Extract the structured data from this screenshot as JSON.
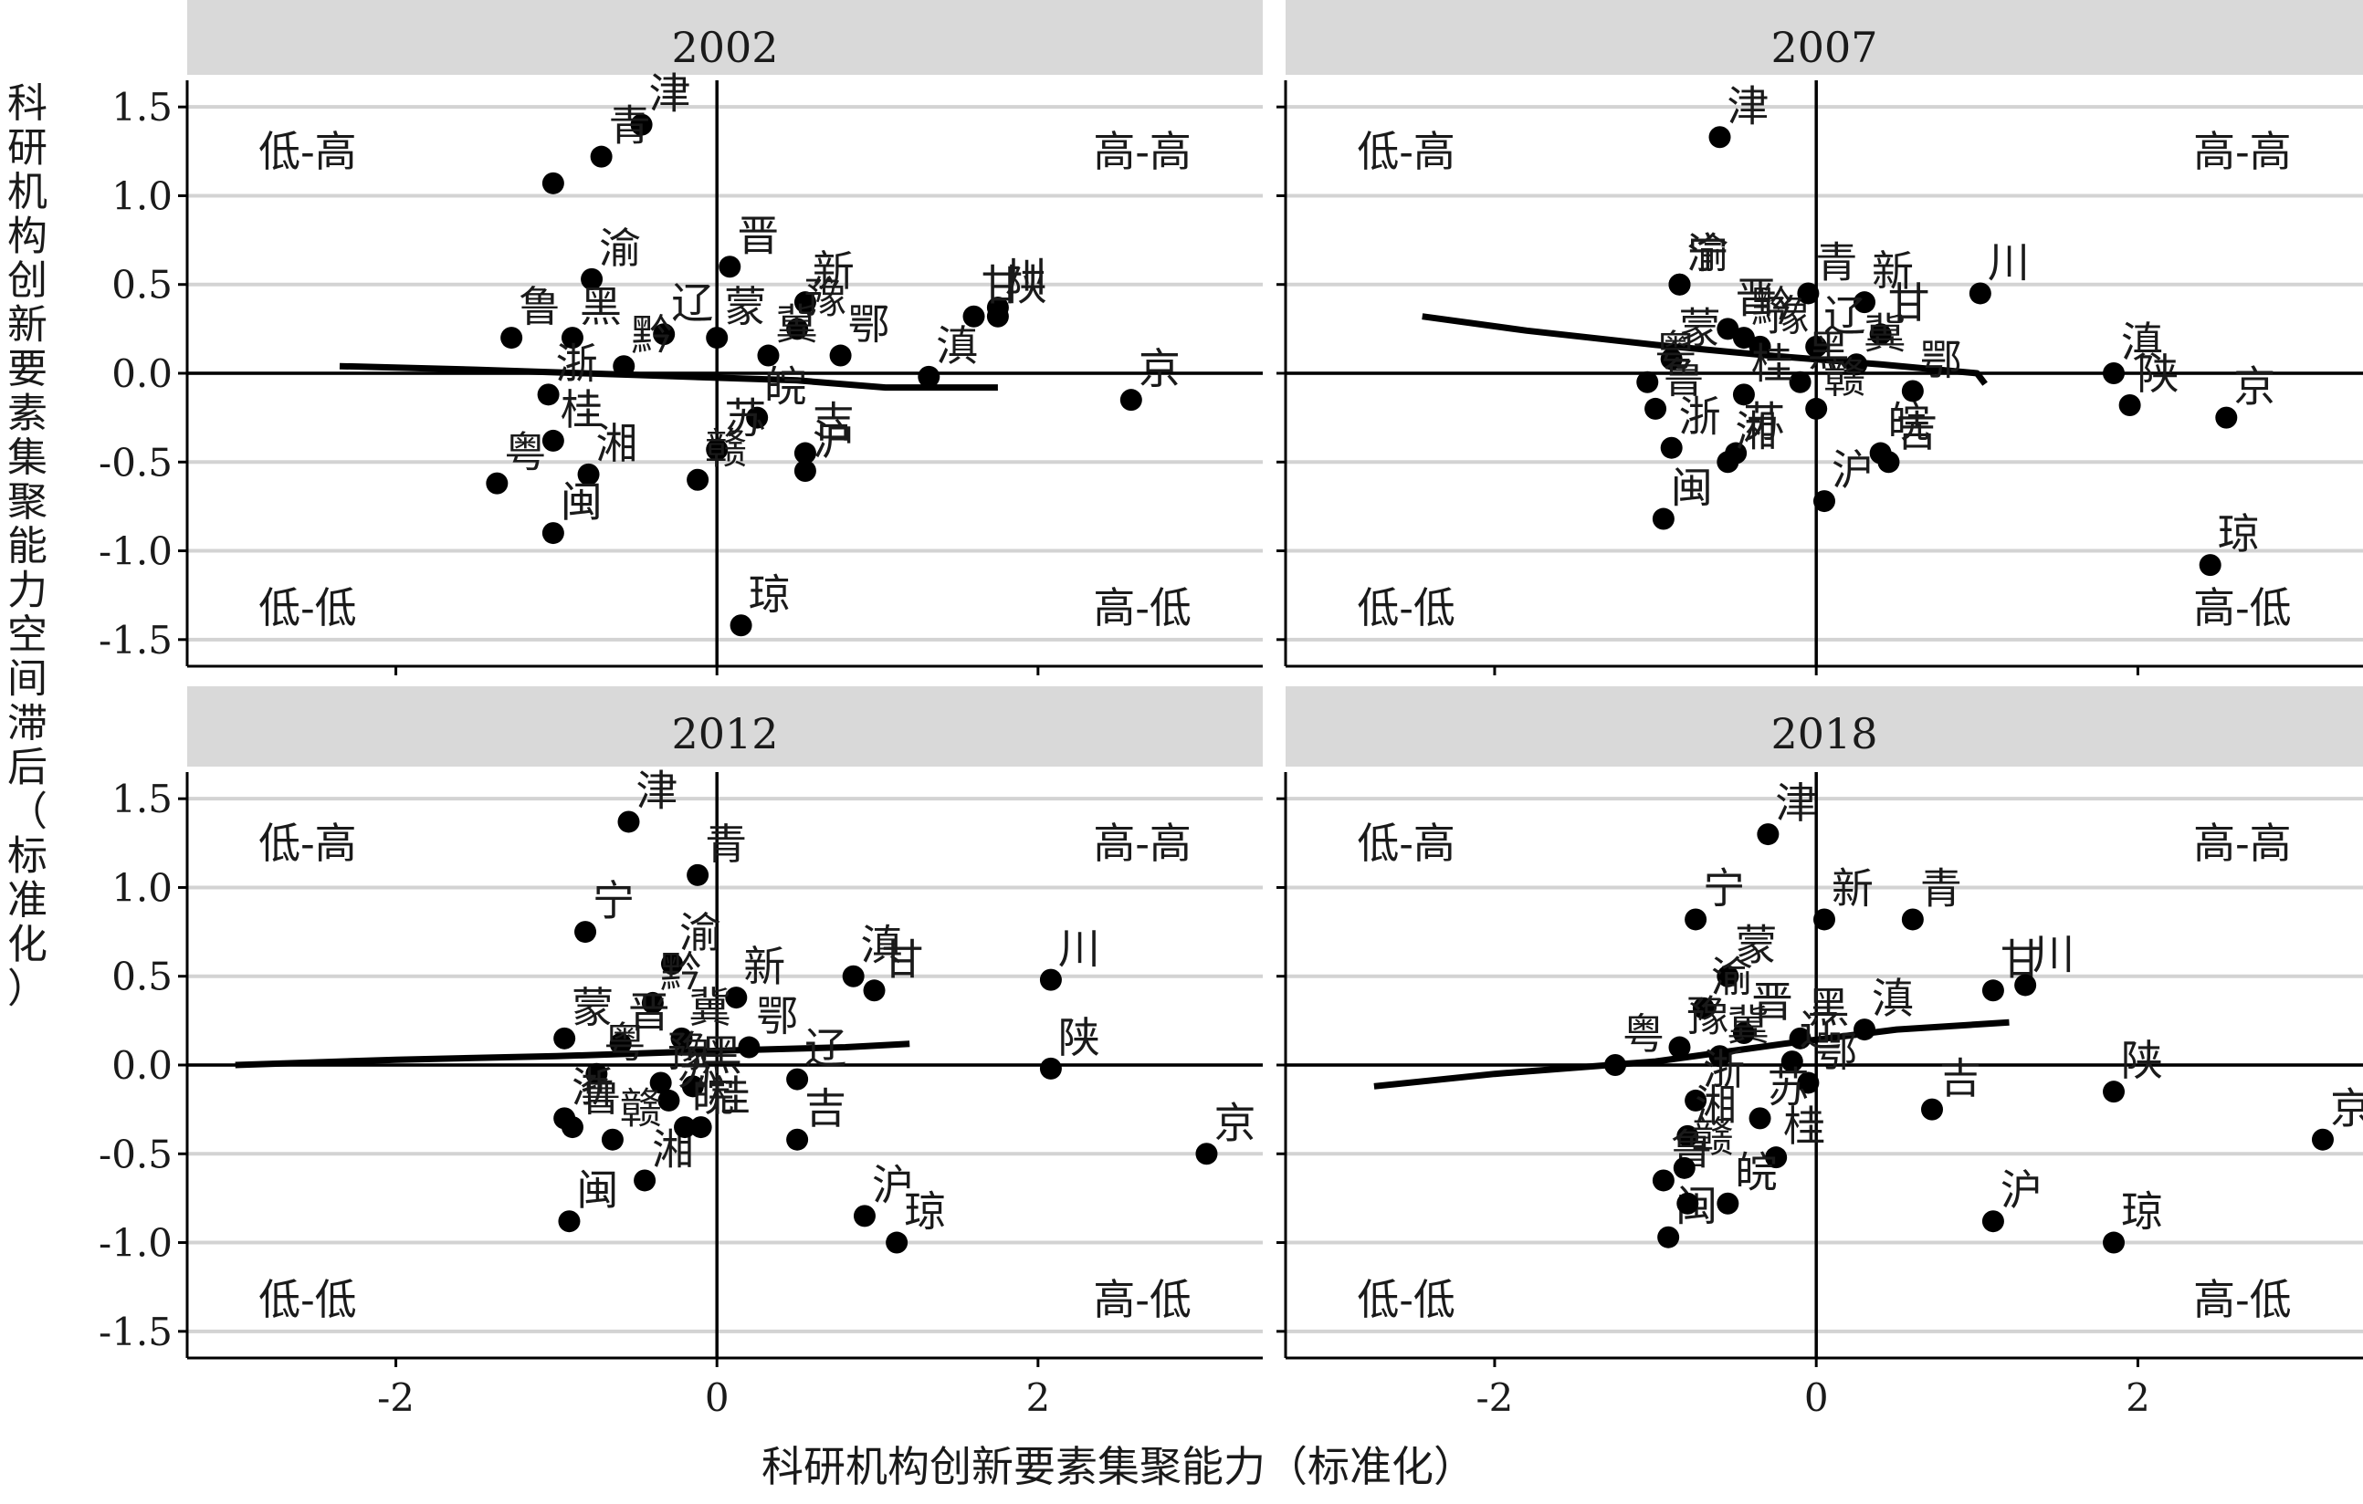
{
  "chart_data": {
    "type": "scatter",
    "xlabel": "科研机构创新要素集聚能力（标准化）",
    "ylabel": "科研机构创新要素集聚能力空间滞后（标准化）",
    "grid": true,
    "quadrant_labels": {
      "top_left": "低-高",
      "top_right": "高-高",
      "bottom_left": "低-低",
      "bottom_right": "高-低"
    },
    "xlim": [
      -3.3,
      3.4
    ],
    "ylim": [
      -1.65,
      1.65
    ],
    "xticks": [
      -2,
      0,
      2
    ],
    "xtick_labels": [
      "-2",
      "0",
      "2"
    ],
    "yticks": [
      1.5,
      1.0,
      0.5,
      0.0,
      -0.5,
      -1.0,
      -1.5
    ],
    "ytick_labels": [
      "1.5",
      "1.0",
      "0.5",
      "0.0",
      "-0.5",
      "-1.0",
      "-1.5"
    ],
    "panels": [
      {
        "title": "2002",
        "points": [
          {
            "label": "津",
            "x": -0.47,
            "y": 1.4
          },
          {
            "label": "青",
            "x": -0.72,
            "y": 1.22
          },
          {
            "label": "",
            "x": -1.02,
            "y": 1.07
          },
          {
            "label": "晋",
            "x": 0.08,
            "y": 0.6
          },
          {
            "label": "渝",
            "x": -0.78,
            "y": 0.53
          },
          {
            "label": "新",
            "x": 0.55,
            "y": 0.4
          },
          {
            "label": "川",
            "x": 1.75,
            "y": 0.37
          },
          {
            "label": "甘",
            "x": 1.6,
            "y": 0.32
          },
          {
            "label": "陕",
            "x": 1.75,
            "y": 0.32
          },
          {
            "label": "豫",
            "x": 0.5,
            "y": 0.25
          },
          {
            "label": "蒙",
            "x": 0.0,
            "y": 0.2
          },
          {
            "label": "鲁",
            "x": -1.28,
            "y": 0.2
          },
          {
            "label": "黑",
            "x": -0.9,
            "y": 0.2
          },
          {
            "label": "辽",
            "x": -0.33,
            "y": 0.22
          },
          {
            "label": "冀",
            "x": 0.32,
            "y": 0.1
          },
          {
            "label": "鄂",
            "x": 0.77,
            "y": 0.1
          },
          {
            "label": "黔",
            "x": -0.58,
            "y": 0.04
          },
          {
            "label": "浙",
            "x": -1.05,
            "y": -0.12
          },
          {
            "label": "滇",
            "x": 1.32,
            "y": -0.02
          },
          {
            "label": "京",
            "x": 2.58,
            "y": -0.15
          },
          {
            "label": "皖",
            "x": 0.25,
            "y": -0.25
          },
          {
            "label": "桂",
            "x": -1.02,
            "y": -0.38
          },
          {
            "label": "苏",
            "x": 0.0,
            "y": -0.43
          },
          {
            "label": "吉",
            "x": 0.55,
            "y": -0.45
          },
          {
            "label": "沪",
            "x": 0.55,
            "y": -0.55
          },
          {
            "label": "粤",
            "x": -1.37,
            "y": -0.62
          },
          {
            "label": "湘",
            "x": -0.8,
            "y": -0.57
          },
          {
            "label": "赣",
            "x": -0.12,
            "y": -0.6
          },
          {
            "label": "闽",
            "x": -1.02,
            "y": -0.9
          },
          {
            "label": "琼",
            "x": 0.15,
            "y": -1.42
          }
        ],
        "smooth": {
          "x": [
            -2.35,
            -1.5,
            -0.5,
            0.5,
            1.05,
            1.75
          ],
          "y": [
            0.04,
            0.02,
            -0.01,
            -0.04,
            -0.08,
            -0.08
          ]
        }
      },
      {
        "title": "2007",
        "points": [
          {
            "label": "津",
            "x": -0.6,
            "y": 1.33
          },
          {
            "label": "宁",
            "x": -0.85,
            "y": 0.5
          },
          {
            "label": "渝",
            "x": -0.85,
            "y": 0.5
          },
          {
            "label": "青",
            "x": -0.05,
            "y": 0.45
          },
          {
            "label": "新",
            "x": 0.3,
            "y": 0.4
          },
          {
            "label": "川",
            "x": 1.02,
            "y": 0.45
          },
          {
            "label": "晋",
            "x": -0.55,
            "y": 0.25
          },
          {
            "label": "黔",
            "x": -0.45,
            "y": 0.2
          },
          {
            "label": "豫",
            "x": -0.35,
            "y": 0.15
          },
          {
            "label": "辽",
            "x": 0.0,
            "y": 0.15
          },
          {
            "label": "甘",
            "x": 0.4,
            "y": 0.22
          },
          {
            "label": "蒙",
            "x": -0.9,
            "y": 0.08
          },
          {
            "label": "滇",
            "x": 1.85,
            "y": 0.0
          },
          {
            "label": "冀",
            "x": 0.25,
            "y": 0.05
          },
          {
            "label": "鄂",
            "x": 0.6,
            "y": -0.1
          },
          {
            "label": "黑",
            "x": -0.1,
            "y": -0.05
          },
          {
            "label": "粤",
            "x": -1.05,
            "y": -0.05
          },
          {
            "label": "鲁",
            "x": -1.0,
            "y": -0.2
          },
          {
            "label": "桂",
            "x": -0.45,
            "y": -0.12
          },
          {
            "label": "陕",
            "x": 1.95,
            "y": -0.18
          },
          {
            "label": "京",
            "x": 2.55,
            "y": -0.25
          },
          {
            "label": "苏",
            "x": -0.5,
            "y": -0.45
          },
          {
            "label": "赣",
            "x": 0.0,
            "y": -0.2
          },
          {
            "label": "皖",
            "x": 0.4,
            "y": -0.45
          },
          {
            "label": "吉",
            "x": 0.45,
            "y": -0.5
          },
          {
            "label": "浙",
            "x": -0.9,
            "y": -0.42
          },
          {
            "label": "湘",
            "x": -0.55,
            "y": -0.5
          },
          {
            "label": "沪",
            "x": 0.05,
            "y": -0.72
          },
          {
            "label": "闽",
            "x": -0.95,
            "y": -0.82
          },
          {
            "label": "琼",
            "x": 2.45,
            "y": -1.08
          }
        ],
        "smooth": {
          "x": [
            -2.45,
            -1.8,
            -1.0,
            -0.3,
            0.4,
            1.0,
            1.05
          ],
          "y": [
            0.32,
            0.24,
            0.16,
            0.1,
            0.05,
            0.0,
            -0.06
          ]
        }
      },
      {
        "title": "2012",
        "points": [
          {
            "label": "津",
            "x": -0.55,
            "y": 1.37
          },
          {
            "label": "青",
            "x": -0.12,
            "y": 1.07
          },
          {
            "label": "宁",
            "x": -0.82,
            "y": 0.75
          },
          {
            "label": "渝",
            "x": -0.28,
            "y": 0.57
          },
          {
            "label": "黔",
            "x": -0.4,
            "y": 0.35
          },
          {
            "label": "新",
            "x": 0.12,
            "y": 0.38
          },
          {
            "label": "滇",
            "x": 0.85,
            "y": 0.5
          },
          {
            "label": "甘",
            "x": 0.98,
            "y": 0.42
          },
          {
            "label": "川",
            "x": 2.08,
            "y": 0.48
          },
          {
            "label": "蒙",
            "x": -0.95,
            "y": 0.15
          },
          {
            "label": "晋",
            "x": -0.6,
            "y": 0.12
          },
          {
            "label": "冀",
            "x": -0.22,
            "y": 0.15
          },
          {
            "label": "鄂",
            "x": 0.2,
            "y": 0.1
          },
          {
            "label": "陕",
            "x": 2.08,
            "y": -0.02
          },
          {
            "label": "粤",
            "x": -0.75,
            "y": -0.05
          },
          {
            "label": "豫",
            "x": -0.35,
            "y": -0.1
          },
          {
            "label": "黑",
            "x": -0.15,
            "y": -0.12
          },
          {
            "label": "辽",
            "x": 0.5,
            "y": -0.08
          },
          {
            "label": "苏",
            "x": -0.3,
            "y": -0.2
          },
          {
            "label": "桂",
            "x": -0.1,
            "y": -0.35
          },
          {
            "label": "吉",
            "x": 0.5,
            "y": -0.42
          },
          {
            "label": "京",
            "x": 3.05,
            "y": -0.5
          },
          {
            "label": "浙",
            "x": -0.95,
            "y": -0.3
          },
          {
            "label": "鲁",
            "x": -0.9,
            "y": -0.35
          },
          {
            "label": "赣",
            "x": -0.65,
            "y": -0.42
          },
          {
            "label": "湘",
            "x": -0.45,
            "y": -0.65
          },
          {
            "label": "皖",
            "x": -0.2,
            "y": -0.35
          },
          {
            "label": "沪",
            "x": 0.92,
            "y": -0.85
          },
          {
            "label": "琼",
            "x": 1.12,
            "y": -1.0
          },
          {
            "label": "闽",
            "x": -0.92,
            "y": -0.88
          }
        ],
        "smooth": {
          "x": [
            -3.0,
            -2.0,
            -1.0,
            0.0,
            0.8,
            1.2
          ],
          "y": [
            0.0,
            0.03,
            0.05,
            0.08,
            0.1,
            0.12
          ]
        }
      },
      {
        "title": "2018",
        "points": [
          {
            "label": "津",
            "x": -0.3,
            "y": 1.3
          },
          {
            "label": "宁",
            "x": -0.75,
            "y": 0.82
          },
          {
            "label": "新",
            "x": 0.05,
            "y": 0.82
          },
          {
            "label": "青",
            "x": 0.6,
            "y": 0.82
          },
          {
            "label": "蒙",
            "x": -0.55,
            "y": 0.5
          },
          {
            "label": "甘",
            "x": 1.1,
            "y": 0.42
          },
          {
            "label": "川",
            "x": 1.3,
            "y": 0.45
          },
          {
            "label": "渝",
            "x": -0.7,
            "y": 0.32
          },
          {
            "label": "晋",
            "x": -0.45,
            "y": 0.18
          },
          {
            "label": "黑",
            "x": -0.1,
            "y": 0.15
          },
          {
            "label": "滇",
            "x": 0.3,
            "y": 0.2
          },
          {
            "label": "豫",
            "x": -0.85,
            "y": 0.1
          },
          {
            "label": "冀",
            "x": -0.6,
            "y": 0.05
          },
          {
            "label": "粤",
            "x": -1.25,
            "y": 0.0
          },
          {
            "label": "辽",
            "x": -0.15,
            "y": 0.02
          },
          {
            "label": "陕",
            "x": 1.85,
            "y": -0.15
          },
          {
            "label": "鄂",
            "x": -0.05,
            "y": -0.1
          },
          {
            "label": "京",
            "x": 3.15,
            "y": -0.42
          },
          {
            "label": "浙",
            "x": -0.75,
            "y": -0.2
          },
          {
            "label": "吉",
            "x": 0.72,
            "y": -0.25
          },
          {
            "label": "苏",
            "x": -0.35,
            "y": -0.3
          },
          {
            "label": "湘",
            "x": -0.8,
            "y": -0.4
          },
          {
            "label": "桂",
            "x": -0.25,
            "y": -0.52
          },
          {
            "label": "鲁",
            "x": -0.95,
            "y": -0.65
          },
          {
            "label": "赣",
            "x": -0.82,
            "y": -0.58
          },
          {
            "label": "皖",
            "x": -0.55,
            "y": -0.78
          },
          {
            "label": "沪",
            "x": 1.1,
            "y": -0.88
          },
          {
            "label": "琼",
            "x": 1.85,
            "y": -1.0
          },
          {
            "label": "闽",
            "x": -0.92,
            "y": -0.97
          },
          {
            "label": "",
            "x": -0.8,
            "y": -0.78
          }
        ],
        "smooth": {
          "x": [
            -2.75,
            -2.0,
            -1.0,
            -0.2,
            0.5,
            1.2
          ],
          "y": [
            -0.12,
            -0.05,
            0.02,
            0.12,
            0.2,
            0.24
          ]
        }
      }
    ]
  },
  "colors": {
    "strip_bg": "#d9d9d9",
    "gridline": "#d3d3d3",
    "point": "#000000",
    "text": "#1a1a1a"
  }
}
